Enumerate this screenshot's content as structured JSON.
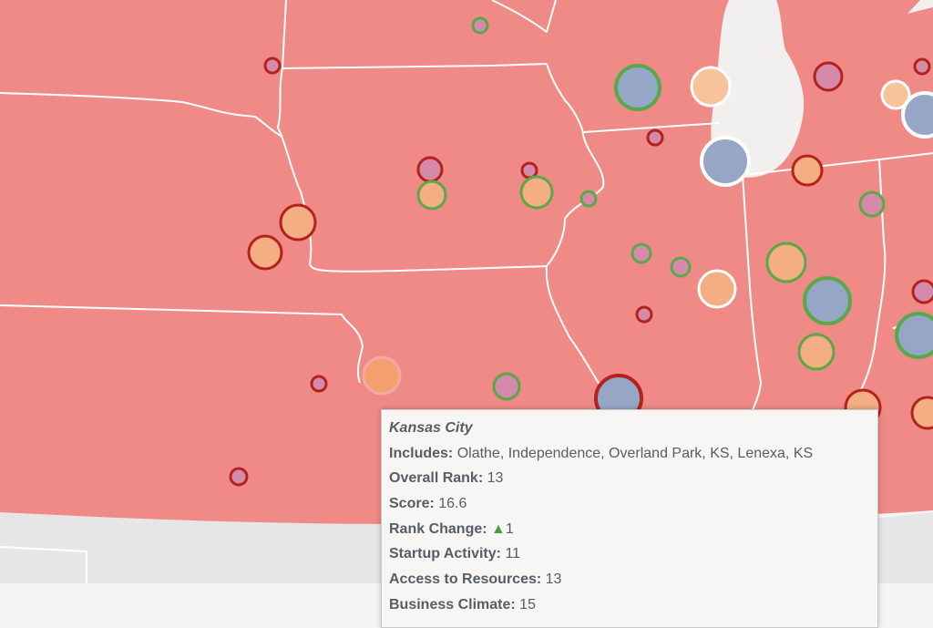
{
  "tooltip": {
    "city": "Kansas City",
    "includes_label": "Includes:",
    "includes_value": "Olathe, Independence, Overland Park, KS, Lenexa, KS",
    "overall_rank_label": "Overall Rank:",
    "overall_rank_value": "13",
    "score_label": "Score:",
    "score_value": "16.6",
    "rank_change_label": "Rank Change:",
    "rank_change_icon": "up-arrow-icon",
    "rank_change_value": "1",
    "startup_activity_label": "Startup Activity:",
    "startup_activity_value": "11",
    "access_label": "Access to Resources:",
    "access_value": "13",
    "business_climate_label": "Business Climate:",
    "business_climate_value": "15"
  },
  "colors": {
    "land": "#f08a87",
    "outside": "#e6e6e6",
    "lake": "#f2f0ef",
    "fill_blue": "#95a6c6",
    "fill_light_blue": "#8ec6e6",
    "fill_orange": "#f5ad84",
    "fill_peach": "#f8c39b",
    "fill_pink": "#d48aa8",
    "ring_green": "#5aa84a",
    "ring_red": "#b5221c",
    "ring_white": "#ffffff",
    "ring_pink": "#f4a8a6",
    "arrow_green": "#4d9d43"
  }
}
